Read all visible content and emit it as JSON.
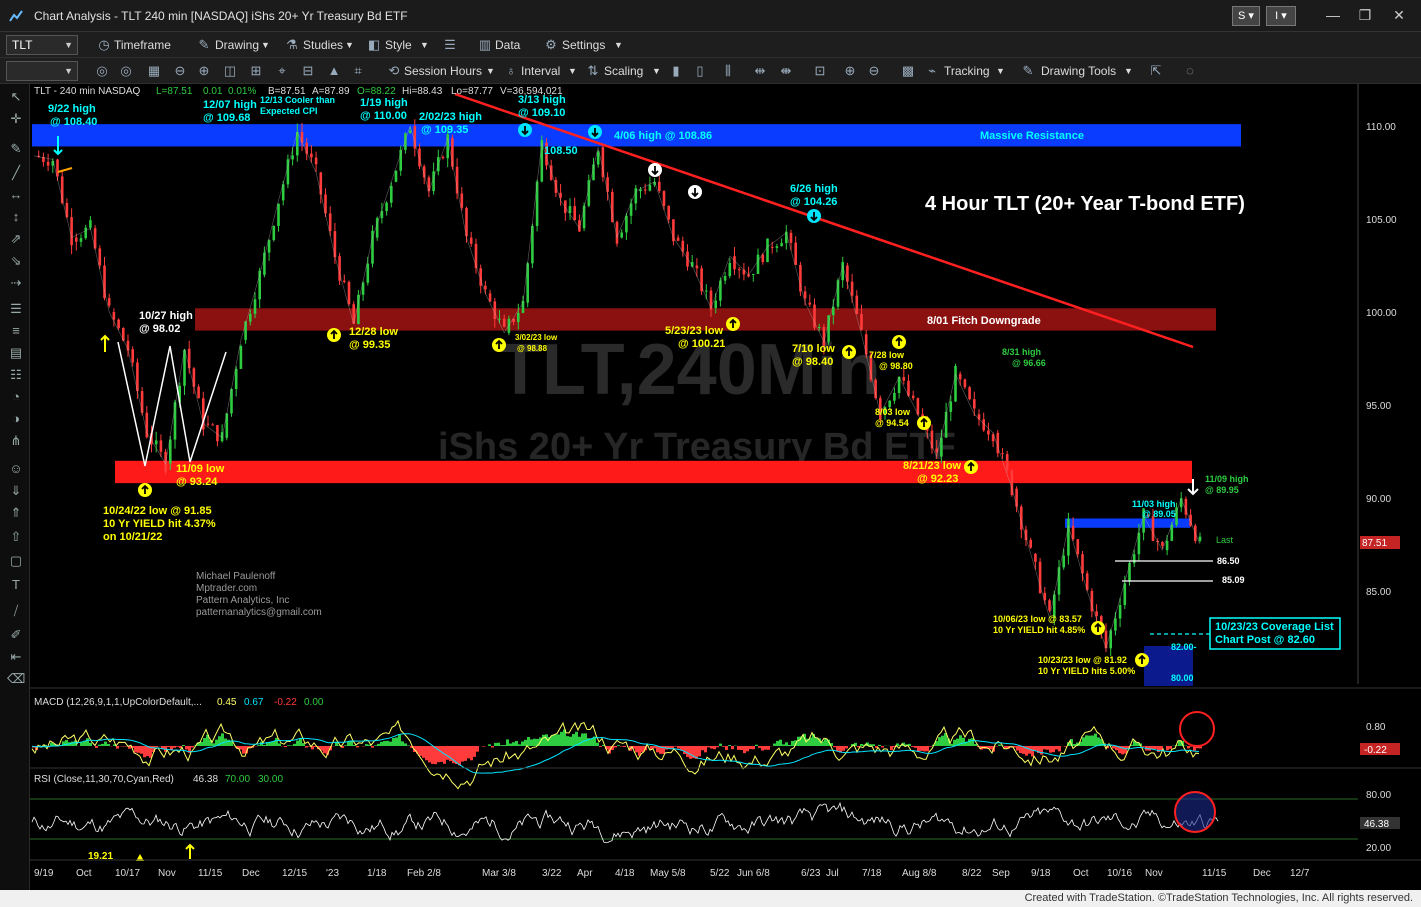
{
  "window": {
    "title": "Chart Analysis - TLT 240 min [NASDAQ] iShs 20+ Yr Treasury Bd ETF",
    "btn_s": "S",
    "btn_i": "I",
    "minimize": "—",
    "restore": "❐",
    "close": "✕"
  },
  "toolbar1": {
    "symbol": "TLT",
    "timeframe": "Timeframe",
    "drawing": "Drawing",
    "studies": "Studies",
    "style": "Style",
    "data": "Data",
    "settings": "Settings"
  },
  "toolbar2": {
    "session_hours": "Session Hours",
    "interval": "Interval",
    "scaling": "Scaling",
    "tracking": "Tracking",
    "drawing_tools": "Drawing Tools"
  },
  "header": {
    "symbol_info": "TLT - 240 min  NASDAQ",
    "last": "L=87.51",
    "change": "0.01",
    "pct": "0.01%",
    "bid": "B=87.51",
    "ask": "A=87.89",
    "open": "O=88.22",
    "high": "Hi=88.43",
    "low": "Lo=87.77",
    "volume": "V=36,594,021"
  },
  "watermark": {
    "line1": "TLT,240Min",
    "line2": "iShs 20+ Yr Treasury Bd ETF"
  },
  "colors": {
    "up_bar": "#2ecc40",
    "down_bar": "#ff3b3b",
    "resistance_band": "#0a3cff",
    "support_band": "#ff1a1a",
    "fitch_band": "#8b1010",
    "trendline": "#ff2020",
    "macd_line": "#ffff66",
    "macd_signal": "#00e5ff",
    "rsi_line": "#ffffff",
    "label_yellow": "#ffff00",
    "label_cyan": "#00ffff"
  },
  "chart_data": {
    "type": "candlestick",
    "title": "4 Hour TLT (20+ Year T-bond ETF)",
    "y_ticks": [
      "110.00",
      "105.00",
      "100.00",
      "95.00",
      "90.00",
      "85.00"
    ],
    "ylim": [
      80.0,
      111.0
    ],
    "x_ticks": [
      "9/19",
      "Oct",
      "10/17",
      "Nov",
      "11/15",
      "Dec",
      "12/15",
      "'23",
      "1/18",
      "Feb 2/8",
      "Mar 3/8",
      "3/22",
      "Apr",
      "4/18",
      "May 5/8",
      "5/22",
      "Jun 6/8",
      "6/23",
      "Jul",
      "7/18",
      "Aug 8/8",
      "8/22",
      "Sep",
      "9/18",
      "Oct",
      "10/16",
      "Nov",
      "11/15",
      "Dec",
      "12/7"
    ],
    "last_price_label": "87.51",
    "last_label": "Last",
    "price_path": [
      {
        "d": "9/19",
        "v": 108.4
      },
      {
        "d": "9/22",
        "v": 108.2
      },
      {
        "d": "9/28",
        "v": 104.0
      },
      {
        "d": "10/03",
        "v": 104.5
      },
      {
        "d": "10/10",
        "v": 100.0
      },
      {
        "d": "10/14",
        "v": 98.0
      },
      {
        "d": "10/21",
        "v": 93.5
      },
      {
        "d": "10/24",
        "v": 91.85
      },
      {
        "d": "10/27",
        "v": 98.02
      },
      {
        "d": "11/03",
        "v": 94.0
      },
      {
        "d": "11/09",
        "v": 93.24
      },
      {
        "d": "11/15",
        "v": 98.5
      },
      {
        "d": "11/25",
        "v": 102.0
      },
      {
        "d": "12/01",
        "v": 106.0
      },
      {
        "d": "12/07",
        "v": 109.68
      },
      {
        "d": "12/13",
        "v": 107.5
      },
      {
        "d": "12/20",
        "v": 103.0
      },
      {
        "d": "12/28",
        "v": 99.35
      },
      {
        "d": "1/05",
        "v": 104.0
      },
      {
        "d": "1/12",
        "v": 107.0
      },
      {
        "d": "1/19",
        "v": 110.0
      },
      {
        "d": "1/25",
        "v": 106.5
      },
      {
        "d": "2/02",
        "v": 109.35
      },
      {
        "d": "2/10",
        "v": 104.0
      },
      {
        "d": "2/20",
        "v": 101.0
      },
      {
        "d": "3/02",
        "v": 98.88
      },
      {
        "d": "3/08",
        "v": 100.5
      },
      {
        "d": "3/13",
        "v": 109.1
      },
      {
        "d": "3/20",
        "v": 106.0
      },
      {
        "d": "3/28",
        "v": 104.5
      },
      {
        "d": "4/06",
        "v": 108.86
      },
      {
        "d": "4/14",
        "v": 104.0
      },
      {
        "d": "4/21",
        "v": 106.5
      },
      {
        "d": "5/01",
        "v": 107.0
      },
      {
        "d": "5/08",
        "v": 104.0
      },
      {
        "d": "5/15",
        "v": 102.5
      },
      {
        "d": "5/23",
        "v": 100.21
      },
      {
        "d": "6/01",
        "v": 103.0
      },
      {
        "d": "6/08",
        "v": 102.0
      },
      {
        "d": "6/16",
        "v": 103.5
      },
      {
        "d": "6/26",
        "v": 104.26
      },
      {
        "d": "7/06",
        "v": 100.5
      },
      {
        "d": "7/10",
        "v": 98.4
      },
      {
        "d": "7/18",
        "v": 102.5
      },
      {
        "d": "7/28",
        "v": 98.8
      },
      {
        "d": "8/03",
        "v": 94.54
      },
      {
        "d": "8/08",
        "v": 96.5
      },
      {
        "d": "8/15",
        "v": 94.5
      },
      {
        "d": "8/21",
        "v": 92.23
      },
      {
        "d": "8/31",
        "v": 96.66
      },
      {
        "d": "9/08",
        "v": 94.5
      },
      {
        "d": "9/15",
        "v": 93.5
      },
      {
        "d": "9/21",
        "v": 90.5
      },
      {
        "d": "9/28",
        "v": 87.0
      },
      {
        "d": "10/06",
        "v": 83.57
      },
      {
        "d": "10/12",
        "v": 88.5
      },
      {
        "d": "10/18",
        "v": 85.0
      },
      {
        "d": "10/23",
        "v": 81.92
      },
      {
        "d": "10/27",
        "v": 85.5
      },
      {
        "d": "11/03",
        "v": 89.05
      },
      {
        "d": "11/06",
        "v": 87.2
      },
      {
        "d": "11/09",
        "v": 89.95
      },
      {
        "d": "11/10",
        "v": 87.51
      }
    ],
    "levels": [
      {
        "name": "Massive Resistance",
        "from": 108.9,
        "to": 110.1
      },
      {
        "name": "8/01 Fitch Downgrade",
        "from": 99.0,
        "to": 100.2
      },
      {
        "name": "support band",
        "from": 90.8,
        "to": 92.0
      },
      {
        "name": "11/03 high band",
        "from": 88.4,
        "to": 88.9
      }
    ],
    "hlines": [
      "86.50",
      "85.09"
    ],
    "subpanels": [
      {
        "name": "MACD (12,26,9,1,1,UpColorDefault,...",
        "values": [
          "0.45",
          "0.67",
          "-0.22",
          "0.00"
        ],
        "ticks": [
          "0.80",
          "-0.22"
        ]
      },
      {
        "name": "RSI (Close,11,30,70,Cyan,Red)",
        "values": [
          "46.38",
          "70.00",
          "30.00"
        ],
        "ticks": [
          "80.00",
          "46.38",
          "20.00"
        ],
        "extra_label": "19.21"
      }
    ]
  },
  "annotations": {
    "massive_resistance": "Massive Resistance",
    "fitch": "8/01 Fitch Downgrade",
    "a_922": [
      "9/22 high",
      "@ 108.40"
    ],
    "a_1207": [
      "12/07 high",
      "@ 109.68"
    ],
    "a_1213": [
      "12/13 Cooler than",
      "Expected CPI"
    ],
    "a_119": [
      "1/19 high",
      "@ 110.00"
    ],
    "a_202": [
      "2/02/23 high",
      "@ 109.35"
    ],
    "a_313": [
      "3/13 high",
      "@ 109.10"
    ],
    "a_406": "4/06 high @ 108.86",
    "a_10850": "108.50",
    "a_626": [
      "6/26 high",
      "@ 104.26"
    ],
    "a_1027": [
      "10/27 high",
      "@ 98.02"
    ],
    "a_1228": [
      "12/28 low",
      "@ 99.35"
    ],
    "a_302": [
      "3/02/23 low",
      "@ 98.88"
    ],
    "a_523": [
      "5/23/23 low",
      "@ 100.21"
    ],
    "a_710": [
      "7/10 low",
      "@ 98.40"
    ],
    "a_728": [
      "7/28 low",
      "@ 98.80"
    ],
    "a_803": [
      "8/03 low",
      "@ 94.54"
    ],
    "a_831": [
      "8/31 high",
      "@ 96.66"
    ],
    "a_821": [
      "8/21/23 low",
      "@ 92.23"
    ],
    "a_1109_22": [
      "11/09 low",
      "@ 93.24"
    ],
    "a_1024": [
      "10/24/22 low @ 91.85",
      "10 Yr YIELD hit 4.37%",
      "on 10/21/22"
    ],
    "a_1103": [
      "11/03 high",
      "@ 89.05"
    ],
    "a_1109_23": [
      "11/09 high",
      "@ 89.95"
    ],
    "a_1006": [
      "10/06/23 low @ 83.57",
      "10 Yr YIELD hit 4.85%"
    ],
    "a_1023": [
      "10/23/23 low @ 81.92",
      "10 Yr YIELD hits 5.00%"
    ],
    "coverage": [
      "10/23/23 Coverage List",
      "Chart Post @ 82.60"
    ],
    "lvl_8650": "86.50",
    "lvl_8509": "85.09",
    "lvl_8200": "82.00-",
    "lvl_8000": "80.00",
    "credit": [
      "Michael Paulenoff",
      "Mptrader.com",
      "Pattern Analytics, Inc",
      "patternanalytics@gmail.com"
    ]
  },
  "status_bar": "Created with TradeStation. ©TradeStation Technologies, Inc. All rights reserved."
}
